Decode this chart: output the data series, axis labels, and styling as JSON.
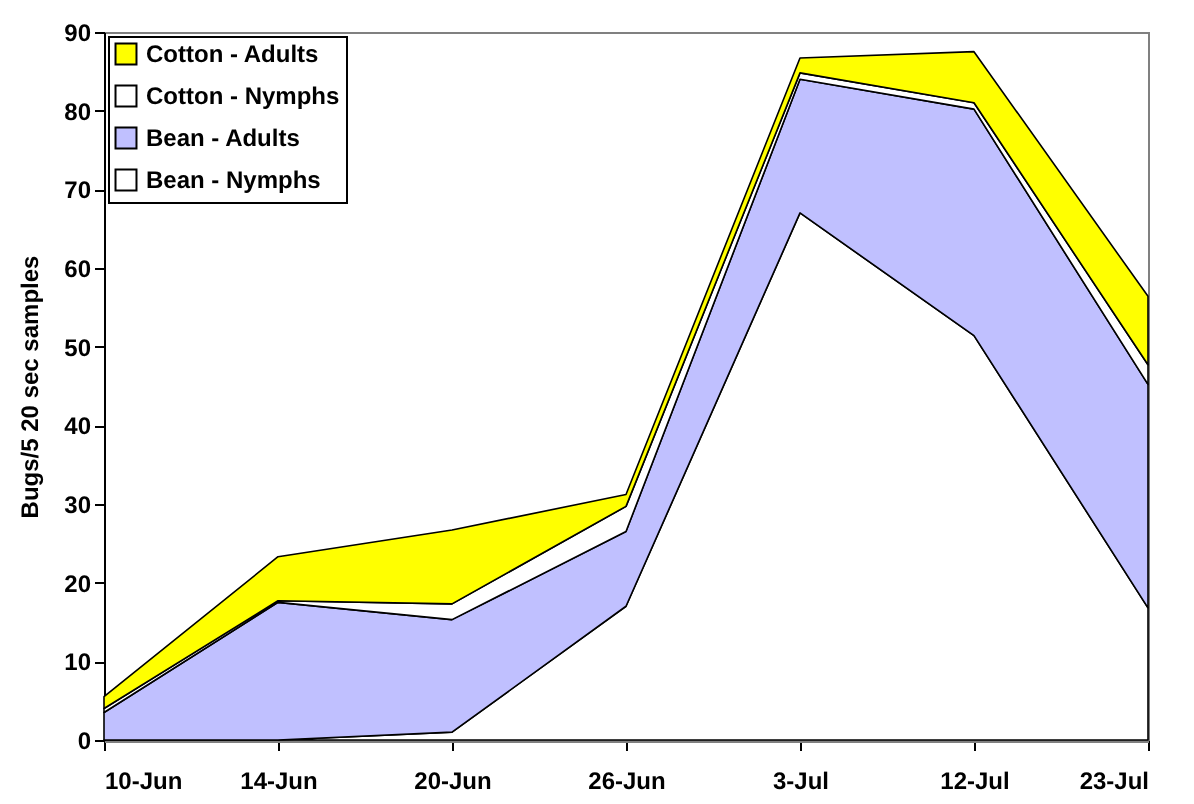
{
  "chart_data": {
    "type": "area",
    "stacked": true,
    "ylabel": "Bugs/5 20 sec samples",
    "categories": [
      "10-Jun",
      "14-Jun",
      "20-Jun",
      "26-Jun",
      "3-Jul",
      "12-Jul",
      "23-Jul"
    ],
    "series": [
      {
        "name": "Bean - Nymphs",
        "color": "#ffffff",
        "values": [
          0,
          0,
          1,
          17,
          67,
          51.4,
          16.8
        ]
      },
      {
        "name": "Bean - Adults",
        "color": "#c0c0ff",
        "values": [
          3.5,
          17.5,
          14.3,
          9.5,
          17,
          28.8,
          28.4
        ]
      },
      {
        "name": "Cotton - Nymphs",
        "color": "#ffffff",
        "values": [
          0.5,
          0.2,
          2,
          3.2,
          0.8,
          0.8,
          2.5
        ]
      },
      {
        "name": "Cotton - Adults",
        "color": "#ffff00",
        "values": [
          1.5,
          5.6,
          9.4,
          1.5,
          1.9,
          6.5,
          8.7
        ]
      }
    ],
    "ylim": [
      0,
      90
    ],
    "yticks": [
      0,
      10,
      20,
      30,
      40,
      50,
      60,
      70,
      80,
      90
    ],
    "grid": false,
    "legend": "top left"
  }
}
